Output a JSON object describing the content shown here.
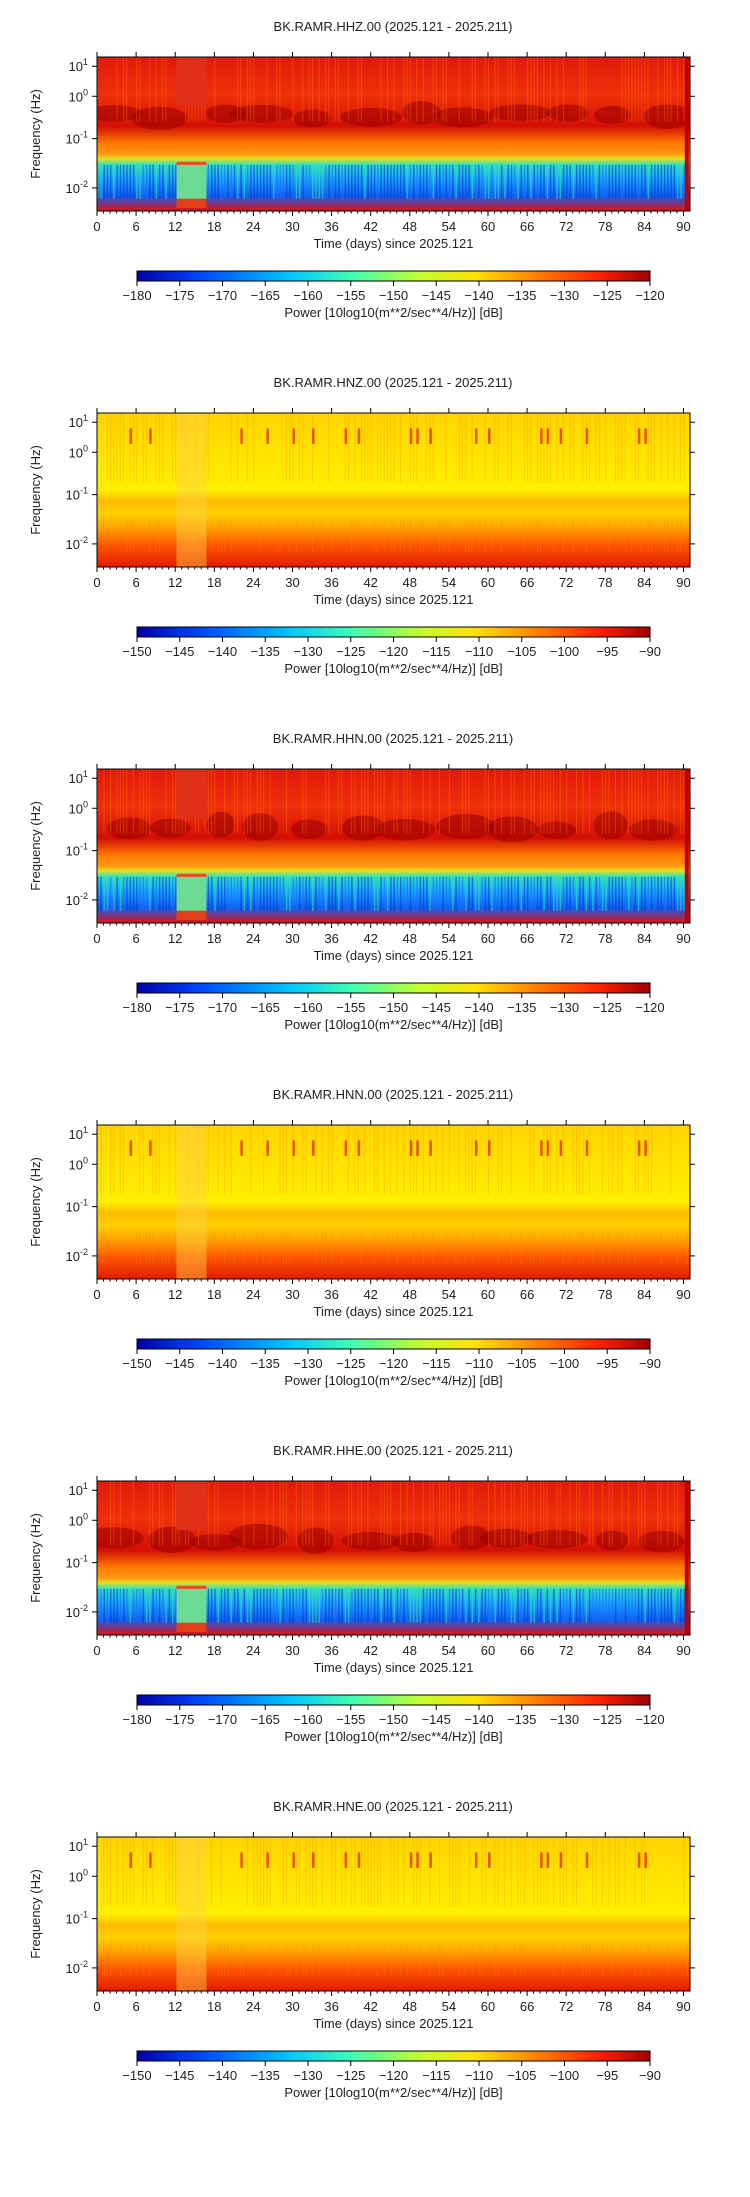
{
  "chart_data": [
    {
      "type": "heatmap",
      "title": "BK.RAMR.HHZ.00 (2025.121 - 2025.211)",
      "xlabel": "Time (days) since 2025.121",
      "ylabel": "Frequency (Hz)",
      "x_ticks": [
        "0",
        "6",
        "12",
        "18",
        "24",
        "30",
        "36",
        "42",
        "48",
        "54",
        "60",
        "66",
        "72",
        "78",
        "84",
        "90"
      ],
      "xlim": [
        0,
        91
      ],
      "y_scale": "log",
      "y_ticks": [
        "10^-2",
        "10^-1",
        "10^0",
        "10^1"
      ],
      "colorbar": {
        "label": "Power [10log10(m**2/sec**4/Hz)] [dB]",
        "range": [
          -180,
          -120
        ],
        "ticks": [
          "−180",
          "−175",
          "−170",
          "−165",
          "−160",
          "−155",
          "−150",
          "−145",
          "−140",
          "−135",
          "−130",
          "−125",
          "−120"
        ]
      }
    },
    {
      "type": "heatmap",
      "title": "BK.RAMR.HNZ.00 (2025.121 - 2025.211)",
      "xlabel": "Time (days) since 2025.121",
      "ylabel": "Frequency (Hz)",
      "x_ticks": [
        "0",
        "6",
        "12",
        "18",
        "24",
        "30",
        "36",
        "42",
        "48",
        "54",
        "60",
        "66",
        "72",
        "78",
        "84",
        "90"
      ],
      "xlim": [
        0,
        91
      ],
      "y_scale": "log",
      "y_ticks": [
        "10^-2",
        "10^-1",
        "10^0",
        "10^1"
      ],
      "colorbar": {
        "label": "Power [10log10(m**2/sec**4/Hz)] [dB]",
        "range": [
          -150,
          -90
        ],
        "ticks": [
          "−150",
          "−145",
          "−140",
          "−135",
          "−130",
          "−125",
          "−120",
          "−115",
          "−110",
          "−105",
          "−100",
          "−95",
          "−90"
        ]
      }
    },
    {
      "type": "heatmap",
      "title": "BK.RAMR.HHN.00 (2025.121 - 2025.211)",
      "xlabel": "Time (days) since 2025.121",
      "ylabel": "Frequency (Hz)",
      "x_ticks": [
        "0",
        "6",
        "12",
        "18",
        "24",
        "30",
        "36",
        "42",
        "48",
        "54",
        "60",
        "66",
        "72",
        "78",
        "84",
        "90"
      ],
      "xlim": [
        0,
        91
      ],
      "y_scale": "log",
      "y_ticks": [
        "10^-2",
        "10^-1",
        "10^0",
        "10^1"
      ],
      "colorbar": {
        "label": "Power [10log10(m**2/sec**4/Hz)] [dB]",
        "range": [
          -180,
          -120
        ],
        "ticks": [
          "−180",
          "−175",
          "−170",
          "−165",
          "−160",
          "−155",
          "−150",
          "−145",
          "−140",
          "−135",
          "−130",
          "−125",
          "−120"
        ]
      }
    },
    {
      "type": "heatmap",
      "title": "BK.RAMR.HNN.00 (2025.121 - 2025.211)",
      "xlabel": "Time (days) since 2025.121",
      "ylabel": "Frequency (Hz)",
      "x_ticks": [
        "0",
        "6",
        "12",
        "18",
        "24",
        "30",
        "36",
        "42",
        "48",
        "54",
        "60",
        "66",
        "72",
        "78",
        "84",
        "90"
      ],
      "xlim": [
        0,
        91
      ],
      "y_scale": "log",
      "y_ticks": [
        "10^-2",
        "10^-1",
        "10^0",
        "10^1"
      ],
      "colorbar": {
        "label": "Power [10log10(m**2/sec**4/Hz)] [dB]",
        "range": [
          -150,
          -90
        ],
        "ticks": [
          "−150",
          "−145",
          "−140",
          "−135",
          "−130",
          "−125",
          "−120",
          "−115",
          "−110",
          "−105",
          "−100",
          "−95",
          "−90"
        ]
      }
    },
    {
      "type": "heatmap",
      "title": "BK.RAMR.HHE.00 (2025.121 - 2025.211)",
      "xlabel": "Time (days) since 2025.121",
      "ylabel": "Frequency (Hz)",
      "x_ticks": [
        "0",
        "6",
        "12",
        "18",
        "24",
        "30",
        "36",
        "42",
        "48",
        "54",
        "60",
        "66",
        "72",
        "78",
        "84",
        "90"
      ],
      "xlim": [
        0,
        91
      ],
      "y_scale": "log",
      "y_ticks": [
        "10^-2",
        "10^-1",
        "10^0",
        "10^1"
      ],
      "colorbar": {
        "label": "Power [10log10(m**2/sec**4/Hz)] [dB]",
        "range": [
          -180,
          -120
        ],
        "ticks": [
          "−180",
          "−175",
          "−170",
          "−165",
          "−160",
          "−155",
          "−150",
          "−145",
          "−140",
          "−135",
          "−130",
          "−125",
          "−120"
        ]
      }
    },
    {
      "type": "heatmap",
      "title": "BK.RAMR.HNE.00 (2025.121 - 2025.211)",
      "xlabel": "Time (days) since 2025.121",
      "ylabel": "Frequency (Hz)",
      "x_ticks": [
        "0",
        "6",
        "12",
        "18",
        "24",
        "30",
        "36",
        "42",
        "48",
        "54",
        "60",
        "66",
        "72",
        "78",
        "84",
        "90"
      ],
      "xlim": [
        0,
        91
      ],
      "y_scale": "log",
      "y_ticks": [
        "10^-2",
        "10^-1",
        "10^0",
        "10^1"
      ],
      "colorbar": {
        "label": "Power [10log10(m**2/sec**4/Hz)] [dB]",
        "range": [
          -150,
          -90
        ],
        "ticks": [
          "−150",
          "−145",
          "−140",
          "−135",
          "−130",
          "−125",
          "−120",
          "−115",
          "−110",
          "−105",
          "−100",
          "−95",
          "−90"
        ]
      }
    }
  ]
}
